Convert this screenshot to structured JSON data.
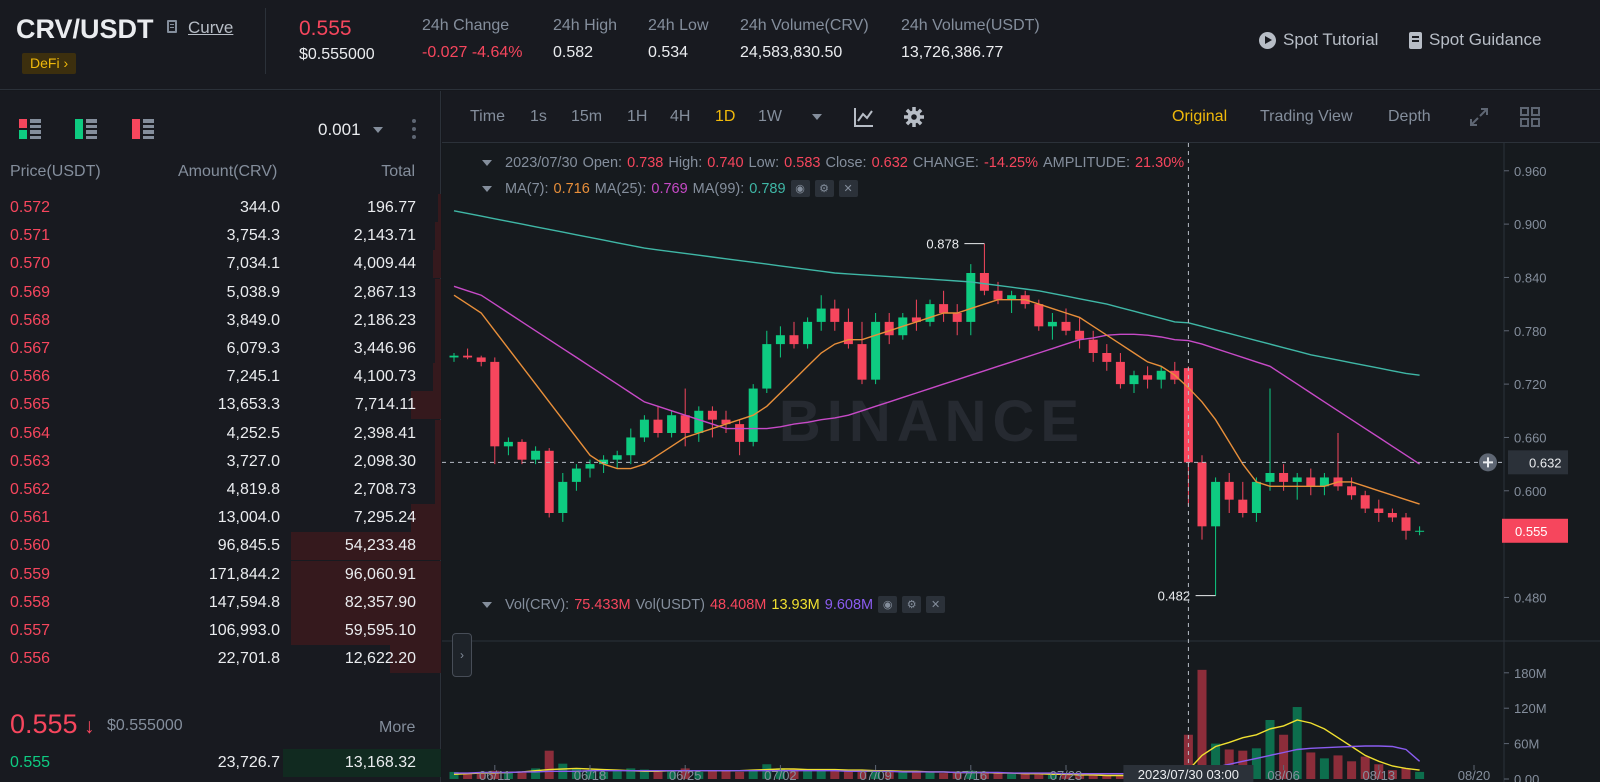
{
  "header": {
    "pair": "CRV/USDT",
    "link": "Curve",
    "tag": "DeFi",
    "last_price": "0.555",
    "last_price_usd": "$0.555000",
    "stats": [
      {
        "label": "24h Change",
        "value": "-0.027 -4.64%"
      },
      {
        "label": "24h High",
        "value": "0.582"
      },
      {
        "label": "24h Low",
        "value": "0.534"
      },
      {
        "label": "24h Volume(CRV)",
        "value": "24,583,830.50"
      },
      {
        "label": "24h Volume(USDT)",
        "value": "13,726,386.77"
      }
    ],
    "spot_tutorial": "Spot Tutorial",
    "spot_guidance": "Spot Guidance"
  },
  "orderbook": {
    "precision": "0.001",
    "headers": {
      "price": "Price(USDT)",
      "amount": "Amount(CRV)",
      "total": "Total"
    },
    "asks": [
      {
        "price": "0.572",
        "amount": "344.0",
        "total": "196.77",
        "depth": 0.02
      },
      {
        "price": "0.571",
        "amount": "3,754.3",
        "total": "2,143.71",
        "depth": 0.04
      },
      {
        "price": "0.570",
        "amount": "7,034.1",
        "total": "4,009.44",
        "depth": 0.05
      },
      {
        "price": "0.569",
        "amount": "5,038.9",
        "total": "2,867.13",
        "depth": 0.04
      },
      {
        "price": "0.568",
        "amount": "3,849.0",
        "total": "2,186.23",
        "depth": 0.04
      },
      {
        "price": "0.567",
        "amount": "6,079.3",
        "total": "3,446.96",
        "depth": 0.04
      },
      {
        "price": "0.566",
        "amount": "7,245.1",
        "total": "4,100.73",
        "depth": 0.05
      },
      {
        "price": "0.565",
        "amount": "13,653.3",
        "total": "7,714.11",
        "depth": 0.2
      },
      {
        "price": "0.564",
        "amount": "4,252.5",
        "total": "2,398.41",
        "depth": 0.04
      },
      {
        "price": "0.563",
        "amount": "3,727.0",
        "total": "2,098.30",
        "depth": 0.04
      },
      {
        "price": "0.562",
        "amount": "4,819.8",
        "total": "2,708.73",
        "depth": 0.04
      },
      {
        "price": "0.561",
        "amount": "13,004.0",
        "total": "7,295.24",
        "depth": 0.2
      },
      {
        "price": "0.560",
        "amount": "96,845.5",
        "total": "54,233.48",
        "depth": 1.0
      },
      {
        "price": "0.559",
        "amount": "171,844.2",
        "total": "96,060.91",
        "depth": 1.0
      },
      {
        "price": "0.558",
        "amount": "147,594.8",
        "total": "82,357.90",
        "depth": 1.0
      },
      {
        "price": "0.557",
        "amount": "106,993.0",
        "total": "59,595.10",
        "depth": 1.0
      },
      {
        "price": "0.556",
        "amount": "22,701.8",
        "total": "12,622.20",
        "depth": 0.34
      }
    ],
    "mid_price": "0.555",
    "mid_arrow": "↓",
    "mid_usd": "$0.555000",
    "more": "More",
    "bids": [
      {
        "price": "0.555",
        "amount": "23,726.7",
        "total": "13,168.32",
        "depth": 0.35
      }
    ]
  },
  "chart_toolbar": {
    "intervals": [
      "Time",
      "1s",
      "15m",
      "1H",
      "4H",
      "1D",
      "1W"
    ],
    "active_interval": "1D",
    "views": [
      "Original",
      "Trading View",
      "Depth"
    ],
    "active_view": "Original"
  },
  "chart_info": {
    "date": "2023/07/30",
    "open_label": "Open:",
    "open": "0.738",
    "high_label": "High:",
    "high": "0.740",
    "low_label": "Low:",
    "low": "0.583",
    "close_label": "Close:",
    "close": "0.632",
    "change_label": "CHANGE:",
    "change": "-14.25%",
    "amp_label": "AMPLITUDE:",
    "amp": "21.30%",
    "ma7_label": "MA(7):",
    "ma7": "0.716",
    "ma25_label": "MA(25):",
    "ma25": "0.769",
    "ma99_label": "MA(99):",
    "ma99": "0.789",
    "vol_crv_label": "Vol(CRV):",
    "vol_crv": "75.433M",
    "vol_usdt_label": "Vol(USDT)",
    "vol_usdt": "48.408M",
    "vol_ma1": "13.93M",
    "vol_ma2": "9.608M"
  },
  "chart_data": {
    "type": "candlestick",
    "watermark": "BINANCE",
    "price_axis": {
      "ticks": [
        "0.960",
        "0.900",
        "0.840",
        "0.780",
        "0.720",
        "0.660",
        "0.600",
        "0.480"
      ],
      "range": [
        0.44,
        0.98
      ]
    },
    "volume_axis": {
      "ticks": [
        "180M",
        "120M",
        "60M",
        "0.00"
      ],
      "range": [
        0,
        200
      ]
    },
    "x_ticks": [
      "06/11",
      "06/18",
      "06/25",
      "07/02",
      "07/09",
      "07/16",
      "07/23",
      "08/06",
      "08/13",
      "08/20"
    ],
    "crosshair_label": "2023/07/30 03:00",
    "crosshair_price": "0.632",
    "last_price_label": "0.555",
    "high_marker": "0.878",
    "low_marker": "0.482",
    "candles": [
      [
        0.75,
        0.755,
        0.745,
        0.752
      ],
      [
        0.752,
        0.76,
        0.748,
        0.75
      ],
      [
        0.75,
        0.752,
        0.74,
        0.745
      ],
      [
        0.745,
        0.75,
        0.63,
        0.65
      ],
      [
        0.65,
        0.66,
        0.64,
        0.655
      ],
      [
        0.655,
        0.658,
        0.63,
        0.635
      ],
      [
        0.635,
        0.65,
        0.63,
        0.645
      ],
      [
        0.645,
        0.648,
        0.57,
        0.575
      ],
      [
        0.575,
        0.62,
        0.565,
        0.61
      ],
      [
        0.61,
        0.63,
        0.6,
        0.625
      ],
      [
        0.625,
        0.635,
        0.615,
        0.63
      ],
      [
        0.63,
        0.64,
        0.62,
        0.635
      ],
      [
        0.635,
        0.645,
        0.625,
        0.64
      ],
      [
        0.64,
        0.67,
        0.63,
        0.66
      ],
      [
        0.66,
        0.685,
        0.655,
        0.68
      ],
      [
        0.68,
        0.695,
        0.66,
        0.665
      ],
      [
        0.665,
        0.69,
        0.66,
        0.685
      ],
      [
        0.685,
        0.715,
        0.65,
        0.665
      ],
      [
        0.665,
        0.695,
        0.655,
        0.69
      ],
      [
        0.69,
        0.695,
        0.66,
        0.68
      ],
      [
        0.68,
        0.69,
        0.665,
        0.675
      ],
      [
        0.675,
        0.68,
        0.64,
        0.655
      ],
      [
        0.655,
        0.72,
        0.65,
        0.715
      ],
      [
        0.715,
        0.78,
        0.71,
        0.765
      ],
      [
        0.765,
        0.785,
        0.75,
        0.775
      ],
      [
        0.775,
        0.79,
        0.76,
        0.765
      ],
      [
        0.765,
        0.795,
        0.76,
        0.79
      ],
      [
        0.79,
        0.82,
        0.78,
        0.805
      ],
      [
        0.805,
        0.815,
        0.78,
        0.79
      ],
      [
        0.79,
        0.805,
        0.76,
        0.765
      ],
      [
        0.765,
        0.79,
        0.72,
        0.725
      ],
      [
        0.725,
        0.8,
        0.72,
        0.79
      ],
      [
        0.79,
        0.8,
        0.765,
        0.775
      ],
      [
        0.775,
        0.8,
        0.77,
        0.795
      ],
      [
        0.795,
        0.815,
        0.78,
        0.79
      ],
      [
        0.79,
        0.815,
        0.785,
        0.81
      ],
      [
        0.81,
        0.825,
        0.79,
        0.8
      ],
      [
        0.8,
        0.81,
        0.775,
        0.79
      ],
      [
        0.79,
        0.855,
        0.775,
        0.845
      ],
      [
        0.845,
        0.878,
        0.82,
        0.825
      ],
      [
        0.825,
        0.835,
        0.81,
        0.815
      ],
      [
        0.815,
        0.825,
        0.8,
        0.82
      ],
      [
        0.82,
        0.825,
        0.805,
        0.81
      ],
      [
        0.81,
        0.815,
        0.78,
        0.785
      ],
      [
        0.785,
        0.8,
        0.77,
        0.79
      ],
      [
        0.79,
        0.805,
        0.775,
        0.78
      ],
      [
        0.78,
        0.795,
        0.76,
        0.77
      ],
      [
        0.77,
        0.78,
        0.745,
        0.755
      ],
      [
        0.755,
        0.765,
        0.735,
        0.745
      ],
      [
        0.745,
        0.755,
        0.715,
        0.72
      ],
      [
        0.72,
        0.735,
        0.71,
        0.73
      ],
      [
        0.73,
        0.74,
        0.715,
        0.725
      ],
      [
        0.725,
        0.74,
        0.715,
        0.735
      ],
      [
        0.735,
        0.745,
        0.72,
        0.725
      ],
      [
        0.738,
        0.74,
        0.583,
        0.632
      ],
      [
        0.632,
        0.64,
        0.545,
        0.56
      ],
      [
        0.56,
        0.615,
        0.482,
        0.61
      ],
      [
        0.61,
        0.62,
        0.575,
        0.59
      ],
      [
        0.59,
        0.61,
        0.57,
        0.575
      ],
      [
        0.575,
        0.615,
        0.565,
        0.61
      ],
      [
        0.61,
        0.715,
        0.6,
        0.62
      ],
      [
        0.62,
        0.63,
        0.6,
        0.61
      ],
      [
        0.61,
        0.62,
        0.59,
        0.615
      ],
      [
        0.615,
        0.625,
        0.595,
        0.605
      ],
      [
        0.605,
        0.62,
        0.595,
        0.615
      ],
      [
        0.615,
        0.665,
        0.6,
        0.605
      ],
      [
        0.605,
        0.615,
        0.59,
        0.595
      ],
      [
        0.595,
        0.6,
        0.575,
        0.58
      ],
      [
        0.58,
        0.59,
        0.565,
        0.575
      ],
      [
        0.575,
        0.58,
        0.565,
        0.57
      ],
      [
        0.57,
        0.575,
        0.545,
        0.555
      ],
      [
        0.555,
        0.56,
        0.55,
        0.555
      ]
    ],
    "volumes": [
      12,
      10,
      9,
      14,
      10,
      12,
      18,
      48,
      26,
      18,
      14,
      12,
      13,
      18,
      16,
      12,
      14,
      18,
      12,
      13,
      14,
      12,
      16,
      25,
      18,
      16,
      14,
      16,
      14,
      13,
      14,
      15,
      12,
      11,
      12,
      11,
      10,
      11,
      14,
      12,
      10,
      9,
      9,
      8,
      7,
      7,
      6,
      6,
      6,
      5,
      5,
      5,
      5,
      6,
      75,
      185,
      60,
      50,
      48,
      52,
      100,
      75,
      122,
      45,
      35,
      40,
      30,
      38,
      25,
      15,
      18,
      12
    ],
    "ma7": [
      0.82,
      0.81,
      0.8,
      0.78,
      0.76,
      0.74,
      0.72,
      0.7,
      0.68,
      0.66,
      0.64,
      0.63,
      0.625,
      0.625,
      0.63,
      0.64,
      0.65,
      0.66,
      0.665,
      0.67,
      0.675,
      0.68,
      0.685,
      0.695,
      0.71,
      0.725,
      0.74,
      0.755,
      0.765,
      0.77,
      0.77,
      0.775,
      0.78,
      0.785,
      0.79,
      0.795,
      0.8,
      0.8,
      0.805,
      0.81,
      0.815,
      0.815,
      0.815,
      0.81,
      0.805,
      0.8,
      0.795,
      0.785,
      0.775,
      0.765,
      0.755,
      0.745,
      0.74,
      0.73,
      0.716,
      0.7,
      0.68,
      0.655,
      0.63,
      0.61,
      0.605,
      0.605,
      0.605,
      0.605,
      0.605,
      0.61,
      0.61,
      0.605,
      0.6,
      0.595,
      0.59,
      0.585
    ],
    "ma25": [
      0.83,
      0.825,
      0.82,
      0.81,
      0.8,
      0.79,
      0.78,
      0.77,
      0.76,
      0.75,
      0.74,
      0.73,
      0.72,
      0.71,
      0.7,
      0.695,
      0.69,
      0.685,
      0.68,
      0.675,
      0.67,
      0.67,
      0.67,
      0.67,
      0.672,
      0.675,
      0.677,
      0.68,
      0.682,
      0.685,
      0.69,
      0.695,
      0.7,
      0.705,
      0.71,
      0.715,
      0.72,
      0.725,
      0.73,
      0.735,
      0.74,
      0.745,
      0.75,
      0.755,
      0.76,
      0.765,
      0.77,
      0.772,
      0.775,
      0.776,
      0.776,
      0.775,
      0.773,
      0.77,
      0.769,
      0.765,
      0.76,
      0.755,
      0.75,
      0.745,
      0.74,
      0.73,
      0.72,
      0.71,
      0.7,
      0.69,
      0.68,
      0.67,
      0.66,
      0.65,
      0.64,
      0.63
    ],
    "ma99": [
      0.915,
      0.912,
      0.909,
      0.906,
      0.903,
      0.9,
      0.897,
      0.894,
      0.891,
      0.888,
      0.885,
      0.882,
      0.879,
      0.876,
      0.873,
      0.871,
      0.869,
      0.867,
      0.865,
      0.863,
      0.861,
      0.859,
      0.857,
      0.855,
      0.853,
      0.851,
      0.849,
      0.847,
      0.845,
      0.844,
      0.843,
      0.842,
      0.841,
      0.84,
      0.839,
      0.838,
      0.837,
      0.836,
      0.835,
      0.833,
      0.831,
      0.829,
      0.827,
      0.825,
      0.822,
      0.819,
      0.816,
      0.813,
      0.81,
      0.806,
      0.802,
      0.798,
      0.794,
      0.79,
      0.789,
      0.785,
      0.781,
      0.777,
      0.773,
      0.769,
      0.765,
      0.761,
      0.757,
      0.753,
      0.75,
      0.747,
      0.744,
      0.741,
      0.738,
      0.735,
      0.732,
      0.73
    ],
    "vol_ma1": [
      8,
      9,
      10,
      10,
      11,
      12,
      14,
      16,
      17,
      18,
      17,
      16,
      15,
      14,
      13,
      13,
      14,
      14,
      14,
      14,
      14,
      14,
      15,
      16,
      17,
      17,
      16,
      16,
      16,
      15,
      15,
      14,
      14,
      13,
      13,
      12,
      12,
      11,
      11,
      11,
      10,
      10,
      9,
      9,
      8,
      8,
      7,
      7,
      6,
      6,
      6,
      5,
      5,
      5,
      15,
      40,
      55,
      62,
      70,
      75,
      85,
      90,
      100,
      95,
      85,
      70,
      55,
      40,
      30,
      22,
      18,
      15
    ],
    "vol_ma2": [
      10,
      10,
      11,
      11,
      11,
      12,
      12,
      13,
      13,
      13,
      14,
      14,
      14,
      14,
      14,
      14,
      14,
      14,
      14,
      14,
      14,
      14,
      14,
      14,
      14,
      14,
      14,
      14,
      14,
      13,
      13,
      13,
      13,
      12,
      12,
      12,
      12,
      11,
      11,
      11,
      11,
      10,
      10,
      10,
      10,
      9,
      9,
      9,
      9,
      9,
      9,
      9,
      9,
      9,
      9,
      12,
      20,
      25,
      30,
      35,
      40,
      45,
      50,
      52,
      53,
      54,
      55,
      56,
      56,
      55,
      50,
      30
    ]
  }
}
